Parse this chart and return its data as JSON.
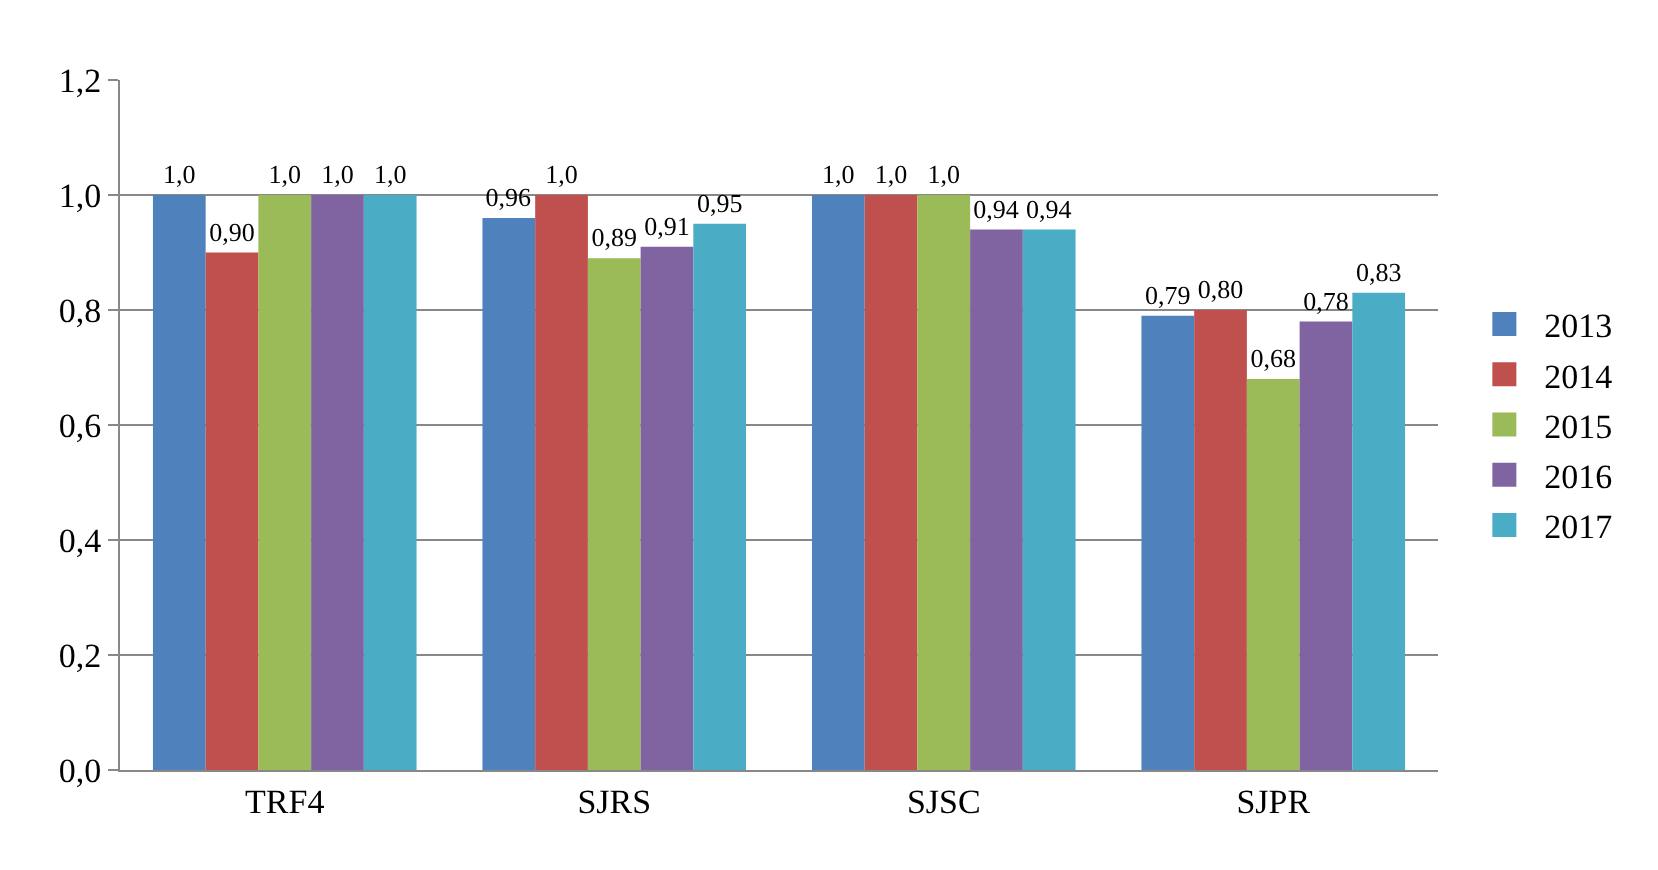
{
  "chart_data": {
    "type": "bar",
    "categories": [
      "TRF4",
      "SJRS",
      "SJSC",
      "SJPR"
    ],
    "series": [
      {
        "name": "2013",
        "color": "#4f81bd",
        "values": [
          1.0,
          0.96,
          1.0,
          0.79
        ],
        "value_labels": [
          "1,0",
          "0,96",
          "1,0",
          "0,79"
        ]
      },
      {
        "name": "2014",
        "color": "#c0504d",
        "values": [
          0.9,
          1.0,
          1.0,
          0.8
        ],
        "value_labels": [
          "0,90",
          "1,0",
          "1,0",
          "0,80"
        ]
      },
      {
        "name": "2015",
        "color": "#9bbb59",
        "values": [
          1.0,
          0.89,
          1.0,
          0.68
        ],
        "value_labels": [
          "1,0",
          "0,89",
          "1,0",
          "0,68"
        ]
      },
      {
        "name": "2016",
        "color": "#8064a2",
        "values": [
          1.0,
          0.91,
          0.94,
          0.78
        ],
        "value_labels": [
          "1,0",
          "0,91",
          "0,94",
          "0,78"
        ]
      },
      {
        "name": "2017",
        "color": "#4bacc6",
        "values": [
          1.0,
          0.95,
          0.94,
          0.83
        ],
        "value_labels": [
          "1,0",
          "0,95",
          "0,94",
          "0,83"
        ]
      }
    ],
    "ylim": [
      0,
      1.2
    ],
    "yticks": [
      {
        "value": 0,
        "label": "0,0"
      },
      {
        "value": 0.2,
        "label": "0,2"
      },
      {
        "value": 0.4,
        "label": "0,4"
      },
      {
        "value": 0.6,
        "label": "0,6"
      },
      {
        "value": 0.8,
        "label": "0,8"
      },
      {
        "value": 1.0,
        "label": "1,0"
      },
      {
        "value": 1.2,
        "label": "1,2"
      }
    ],
    "grid": "y",
    "legend": "right"
  }
}
